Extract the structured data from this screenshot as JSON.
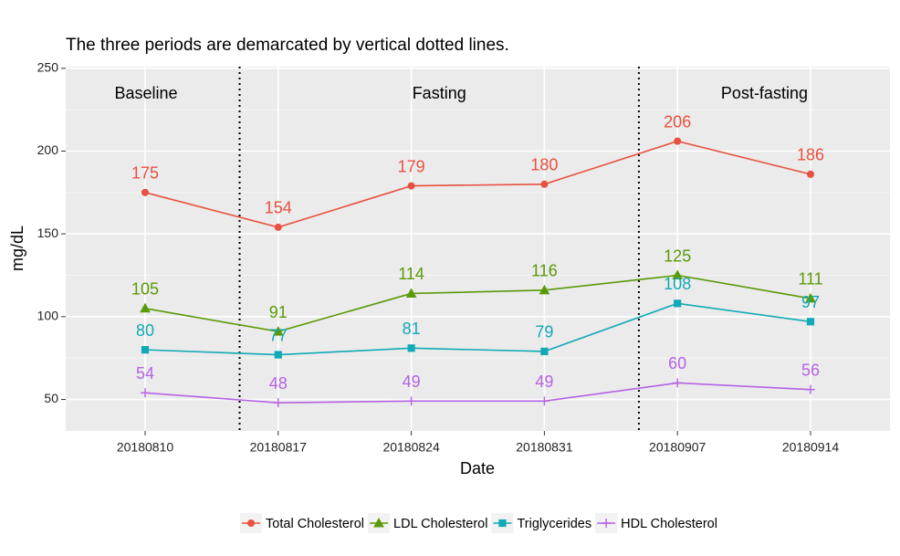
{
  "chart_data": {
    "type": "line",
    "title": "The three periods are demarcated by vertical dotted lines.",
    "x_label": "Date",
    "y_label": "mg/dL",
    "categories": [
      "20180810",
      "20180817",
      "20180824",
      "20180831",
      "20180907",
      "20180914"
    ],
    "series": [
      {
        "name": "Total Cholesterol",
        "color": "#E8503F",
        "marker": "circle",
        "values": [
          175,
          154,
          179,
          180,
          206,
          186
        ]
      },
      {
        "name": "LDL Cholesterol",
        "color": "#5A9A08",
        "marker": "triangle",
        "values": [
          105,
          91,
          114,
          116,
          125,
          111
        ]
      },
      {
        "name": "Triglycerides",
        "color": "#12A9B6",
        "marker": "square",
        "values": [
          80,
          77,
          81,
          79,
          108,
          97
        ]
      },
      {
        "name": "HDL Cholesterol",
        "color": "#B563E3",
        "marker": "plus",
        "values": [
          54,
          48,
          49,
          49,
          60,
          56
        ]
      }
    ],
    "annotations": [
      "Baseline",
      "Fasting",
      "Post-fasting"
    ],
    "vlines": [
      0.71,
      3.71
    ],
    "ylim": [
      31,
      251
    ],
    "yticks": [
      50,
      100,
      150,
      200,
      250
    ],
    "grid": true,
    "legend": "bottom"
  }
}
